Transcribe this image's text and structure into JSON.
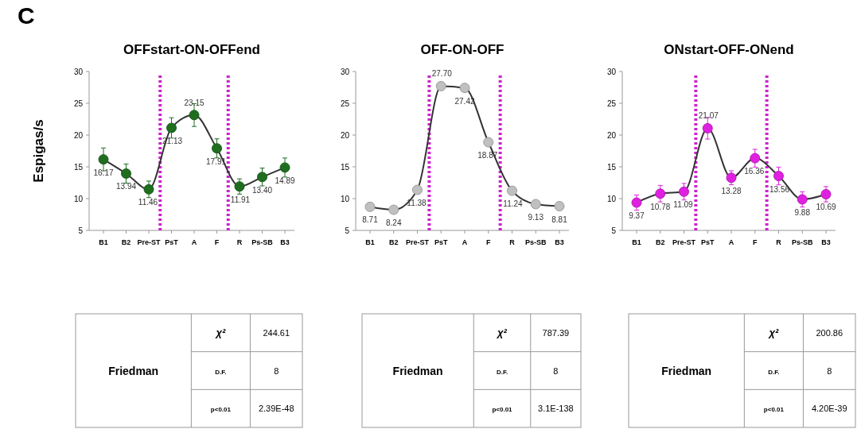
{
  "chart_data": [
    {
      "type": "line",
      "title": "OFFstart-ON-OFFend",
      "ylabel": "Espigas/s",
      "annotations": [
        "C"
      ],
      "categories": [
        "B1",
        "B2",
        "Pre-ST",
        "PsT",
        "A",
        "F",
        "R",
        "Ps-SB",
        "B3"
      ],
      "series": [
        {
          "color": "#1f6e1f",
          "values": [
            16.17,
            13.94,
            11.46,
            21.13,
            23.15,
            17.91,
            11.91,
            13.4,
            14.89
          ],
          "value_labels": [
            "16.17",
            "13.94",
            "11.46",
            "21.13",
            "23.15",
            "17.91",
            "11.91",
            "13.40",
            "14.89"
          ],
          "errors": [
            1.8,
            1.5,
            1.3,
            1.6,
            1.8,
            1.5,
            1.2,
            1.4,
            1.5
          ]
        }
      ],
      "ylim": [
        5,
        30
      ],
      "yticks": [
        5,
        10,
        15,
        20,
        25,
        30
      ],
      "marker": "circle",
      "line_style": "solid"
    },
    {
      "type": "line",
      "title": "OFF-ON-OFF",
      "categories": [
        "B1",
        "B2",
        "Pre-ST",
        "PsT",
        "A",
        "F",
        "R",
        "Ps-SB",
        "B3"
      ],
      "series": [
        {
          "color": "#c0c0c0",
          "values": [
            8.71,
            8.24,
            11.38,
            27.7,
            27.42,
            18.87,
            11.24,
            9.13,
            8.81
          ],
          "value_labels": [
            "8.71",
            "8.24",
            "11.38",
            "27.70",
            "27.42",
            "18.87",
            "11.24",
            "9.13",
            "8.81"
          ]
        }
      ],
      "ylim": [
        5,
        30
      ],
      "yticks": [
        5,
        10,
        15,
        20,
        25,
        30
      ],
      "marker": "circle",
      "line_style": "solid"
    },
    {
      "type": "line",
      "title": "ONstart-OFF-ONend",
      "categories": [
        "B1",
        "B2",
        "Pre-ST",
        "PsT",
        "A",
        "F",
        "R",
        "Ps-SB",
        "B3"
      ],
      "series": [
        {
          "color": "#e020e0",
          "values": [
            9.37,
            10.78,
            11.09,
            21.07,
            13.28,
            16.36,
            13.56,
            9.88,
            10.69
          ],
          "value_labels": [
            "9.37",
            "10.78",
            "11.09",
            "21.07",
            "13.28",
            "16.36",
            "13.56",
            "9.88",
            "10.69"
          ],
          "errors": [
            1.2,
            1.3,
            1.3,
            1.7,
            1.1,
            1.4,
            1.4,
            1.2,
            1.2
          ]
        }
      ],
      "ylim": [
        5,
        30
      ],
      "yticks": [
        5,
        10,
        15,
        20,
        25,
        30
      ],
      "marker": "circle",
      "line_style": "solid"
    },
    {
      "type": "other",
      "title": "Friedman",
      "annotations": [
        "χ²",
        "244.61",
        "D.F.",
        "8",
        "p<0.01",
        "2.39E-48"
      ]
    },
    {
      "type": "other",
      "title": "Friedman",
      "annotations": [
        "χ²",
        "787.39",
        "D.F.",
        "8",
        "p<0.01",
        "3.1E-138"
      ]
    },
    {
      "type": "other",
      "title": "Friedman",
      "annotations": [
        "χ²",
        "200.86",
        "D.F.",
        "8",
        "p<0.01",
        "4.20E-39"
      ]
    }
  ]
}
